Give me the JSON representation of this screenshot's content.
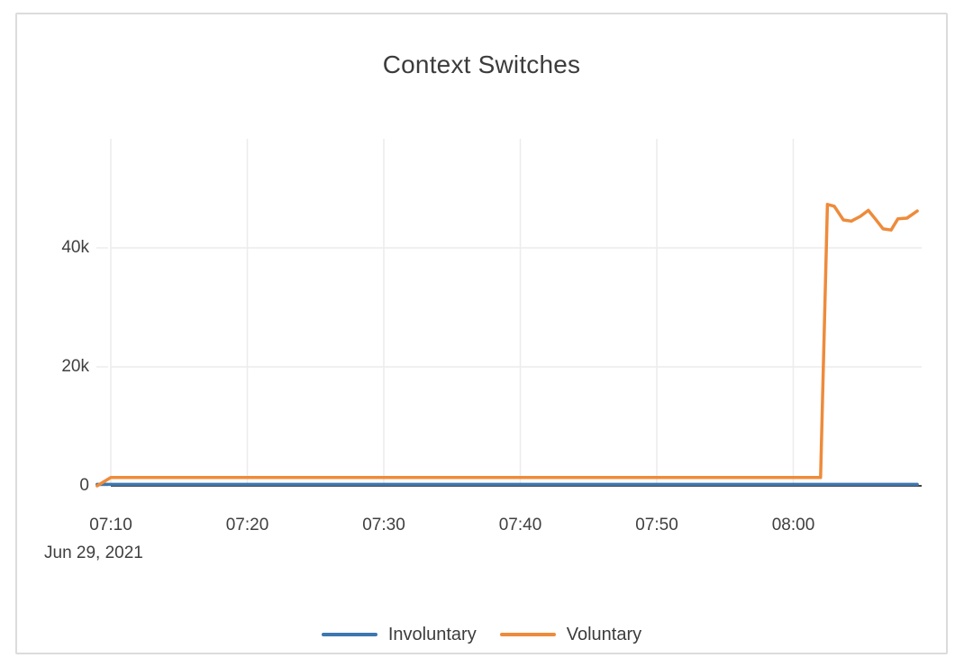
{
  "chart_data": {
    "type": "line",
    "title": "Context Switches",
    "grid": true,
    "legend_position": "bottom",
    "x_axis": {
      "date_label": "Jun 29, 2021",
      "ticks": [
        "07:10",
        "07:20",
        "07:30",
        "07:40",
        "07:50",
        "08:00"
      ],
      "range": [
        "07:09:00",
        "08:09:30"
      ]
    },
    "y_axis": {
      "ticks": [
        {
          "value": 0,
          "label": "0"
        },
        {
          "value": 20000,
          "label": "20k"
        },
        {
          "value": 40000,
          "label": "40k"
        }
      ],
      "range": [
        0,
        58300
      ],
      "zeroline": true
    },
    "colors": {
      "involuntary": "#3d77af",
      "voluntary": "#ee8b3b",
      "gridline": "#ececec",
      "zeroline": "#444444",
      "text": "#3f3f3f"
    },
    "series": [
      {
        "name": "Involuntary",
        "color": "#3d77af",
        "points": [
          [
            "07:09:00",
            250
          ],
          [
            "07:20:00",
            250
          ],
          [
            "07:30:00",
            250
          ],
          [
            "07:40:00",
            250
          ],
          [
            "07:50:00",
            250
          ],
          [
            "08:00:00",
            250
          ],
          [
            "08:09:05",
            250
          ]
        ]
      },
      {
        "name": "Voluntary",
        "color": "#ee8b3b",
        "points": [
          [
            "07:09:00",
            0
          ],
          [
            "07:10:00",
            1400
          ],
          [
            "07:20:00",
            1400
          ],
          [
            "07:30:00",
            1400
          ],
          [
            "07:40:00",
            1400
          ],
          [
            "07:50:00",
            1400
          ],
          [
            "08:00:00",
            1400
          ],
          [
            "08:02:00",
            1400
          ],
          [
            "08:02:30",
            47300
          ],
          [
            "08:03:00",
            47000
          ],
          [
            "08:03:40",
            44700
          ],
          [
            "08:04:15",
            44500
          ],
          [
            "08:04:55",
            45300
          ],
          [
            "08:05:30",
            46300
          ],
          [
            "08:06:00",
            44900
          ],
          [
            "08:06:35",
            43200
          ],
          [
            "08:07:10",
            43000
          ],
          [
            "08:07:40",
            44900
          ],
          [
            "08:08:20",
            45000
          ],
          [
            "08:09:05",
            46200
          ]
        ]
      }
    ]
  }
}
